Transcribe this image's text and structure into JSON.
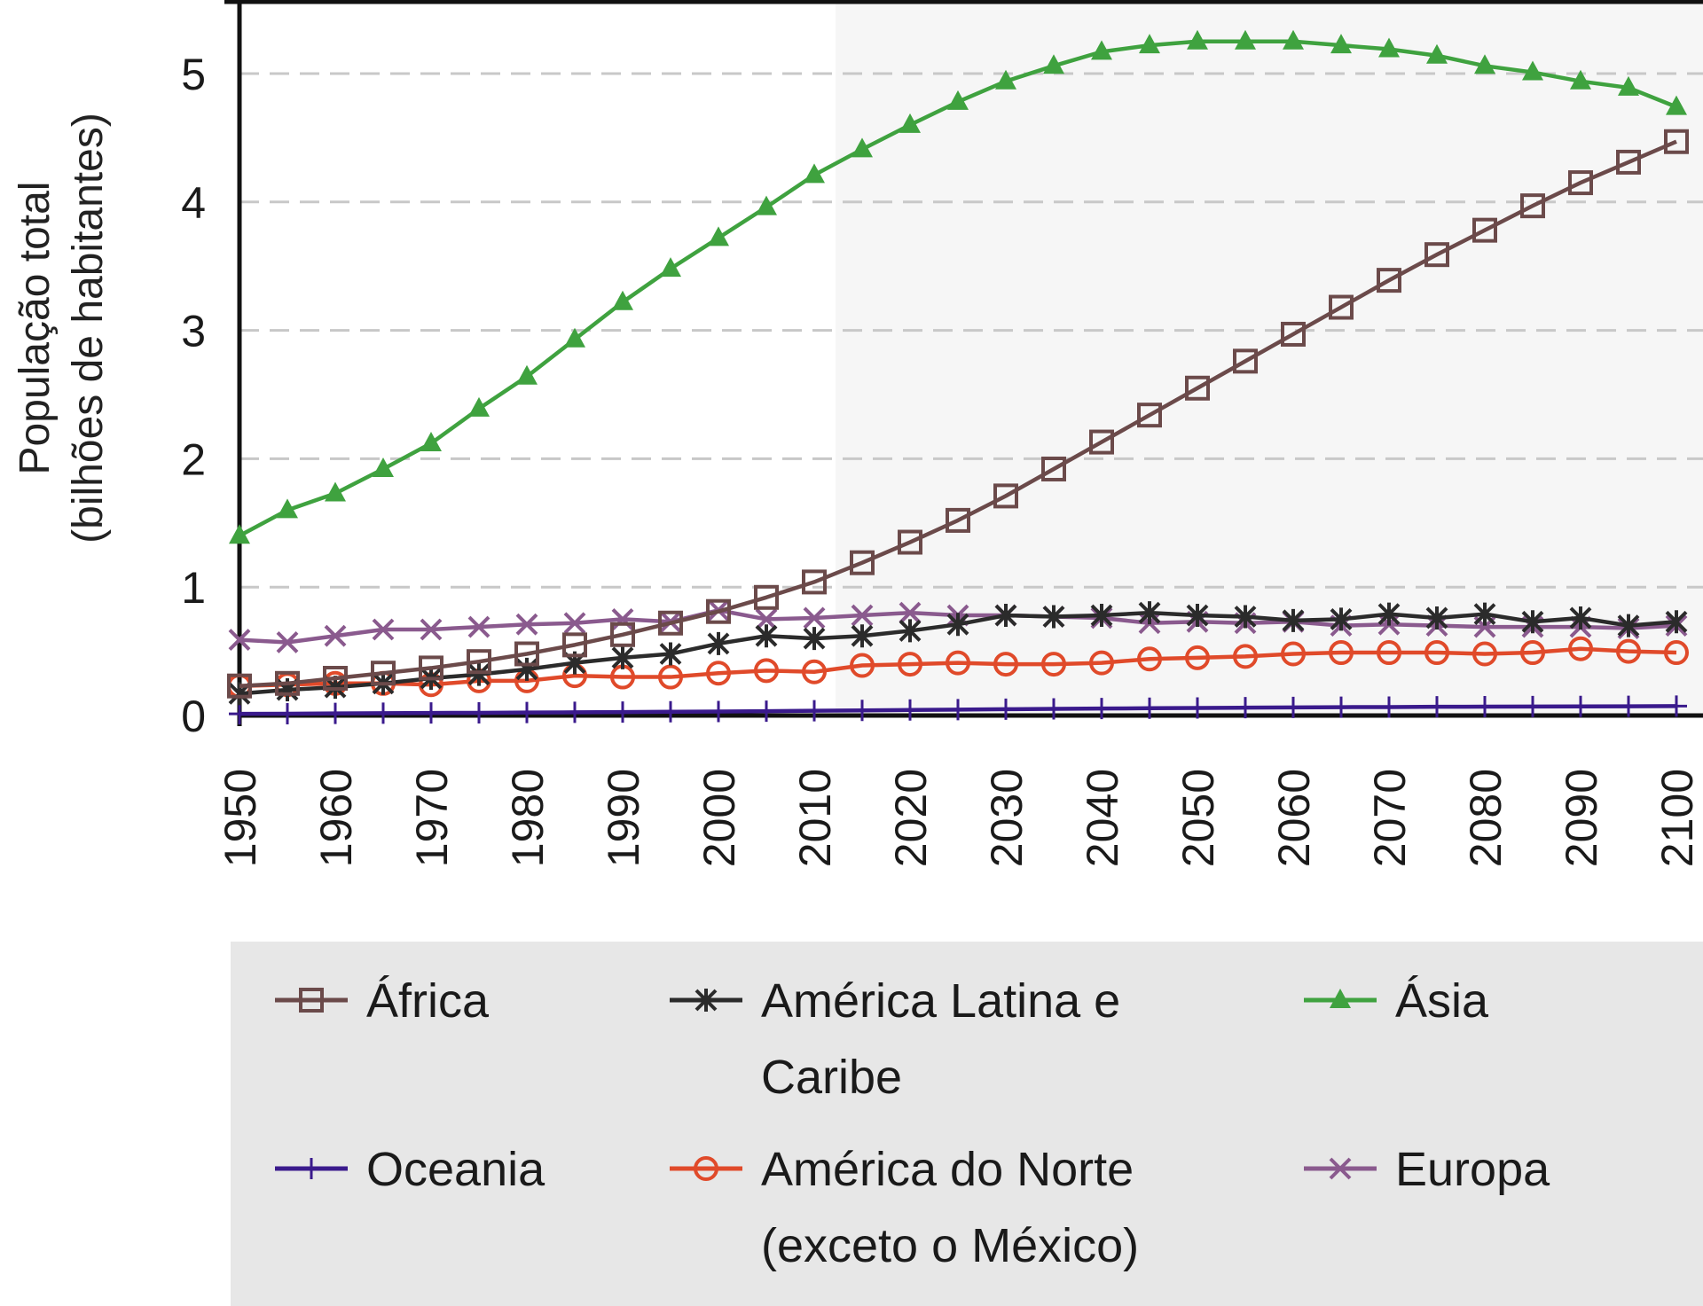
{
  "chart_data": {
    "type": "line",
    "ylabel_lines": [
      "População total",
      "(bilhões de habitantes)"
    ],
    "xlabel": "",
    "x": [
      1950,
      1955,
      1960,
      1965,
      1970,
      1975,
      1980,
      1985,
      1990,
      1995,
      2000,
      2005,
      2010,
      2015,
      2020,
      2025,
      2030,
      2035,
      2040,
      2045,
      2050,
      2055,
      2060,
      2065,
      2070,
      2075,
      2080,
      2085,
      2090,
      2095,
      2100
    ],
    "xticks": [
      1950,
      1960,
      1970,
      1980,
      1990,
      2000,
      2010,
      2020,
      2030,
      2040,
      2050,
      2060,
      2070,
      2080,
      2090,
      2100
    ],
    "xlim": [
      1950,
      2100
    ],
    "ylim": [
      0,
      5.5
    ],
    "yticks": [
      0,
      1,
      2,
      3,
      4,
      5
    ],
    "grid": "horizontal dashed",
    "projection_shading_from": 2015,
    "legend_position": "bottom",
    "series": [
      {
        "name": "África",
        "color": "#6b4a4a",
        "marker": "square",
        "values": [
          0.23,
          0.25,
          0.29,
          0.33,
          0.37,
          0.42,
          0.48,
          0.55,
          0.63,
          0.72,
          0.81,
          0.92,
          1.04,
          1.19,
          1.35,
          1.52,
          1.71,
          1.92,
          2.13,
          2.34,
          2.55,
          2.76,
          2.97,
          3.18,
          3.39,
          3.59,
          3.78,
          3.97,
          4.15,
          4.31,
          4.47
        ]
      },
      {
        "name": "América Latina e Caribe",
        "color": "#2b2b2b",
        "marker": "asterisk",
        "values": [
          0.17,
          0.2,
          0.22,
          0.25,
          0.29,
          0.32,
          0.36,
          0.41,
          0.45,
          0.48,
          0.56,
          0.62,
          0.6,
          0.62,
          0.66,
          0.71,
          0.78,
          0.77,
          0.78,
          0.8,
          0.78,
          0.77,
          0.74,
          0.75,
          0.79,
          0.76,
          0.79,
          0.73,
          0.76,
          0.7,
          0.73
        ]
      },
      {
        "name": "Ásia",
        "color": "#3fa23f",
        "marker": "triangle",
        "values": [
          1.4,
          1.6,
          1.73,
          1.92,
          2.12,
          2.39,
          2.64,
          2.93,
          3.22,
          3.48,
          3.72,
          3.96,
          4.21,
          4.41,
          4.6,
          4.78,
          4.94,
          5.06,
          5.17,
          5.22,
          5.25,
          5.25,
          5.25,
          5.22,
          5.19,
          5.14,
          5.06,
          5.01,
          4.94,
          4.89,
          4.74
        ]
      },
      {
        "name": "Oceania",
        "color": "#3a1a8c",
        "marker": "plus",
        "values": [
          0.013,
          0.014,
          0.016,
          0.018,
          0.02,
          0.021,
          0.023,
          0.025,
          0.027,
          0.029,
          0.031,
          0.034,
          0.037,
          0.04,
          0.043,
          0.046,
          0.049,
          0.052,
          0.054,
          0.057,
          0.059,
          0.061,
          0.063,
          0.065,
          0.066,
          0.068,
          0.069,
          0.07,
          0.071,
          0.072,
          0.073
        ]
      },
      {
        "name": "América do Norte (exceto o México)",
        "color": "#e04a2a",
        "marker": "circle",
        "values": [
          0.23,
          0.24,
          0.25,
          0.25,
          0.24,
          0.27,
          0.27,
          0.31,
          0.3,
          0.3,
          0.33,
          0.35,
          0.34,
          0.39,
          0.4,
          0.41,
          0.4,
          0.4,
          0.41,
          0.44,
          0.45,
          0.46,
          0.48,
          0.49,
          0.49,
          0.49,
          0.48,
          0.49,
          0.52,
          0.5,
          0.49
        ]
      },
      {
        "name": "Europa",
        "color": "#8a5a8e",
        "marker": "x",
        "values": [
          0.59,
          0.57,
          0.62,
          0.67,
          0.67,
          0.69,
          0.71,
          0.72,
          0.75,
          0.73,
          0.82,
          0.75,
          0.76,
          0.78,
          0.8,
          0.78,
          0.78,
          0.77,
          0.76,
          0.72,
          0.73,
          0.72,
          0.73,
          0.7,
          0.71,
          0.7,
          0.69,
          0.69,
          0.69,
          0.68,
          0.7
        ]
      }
    ],
    "legend": [
      {
        "series": 0,
        "lines": [
          "África"
        ]
      },
      {
        "series": 1,
        "lines": [
          "América Latina e",
          "Caribe"
        ]
      },
      {
        "series": 2,
        "lines": [
          "Ásia"
        ]
      },
      {
        "series": 3,
        "lines": [
          "Oceania"
        ]
      },
      {
        "series": 4,
        "lines": [
          "América do Norte",
          "(exceto o México)"
        ]
      },
      {
        "series": 5,
        "lines": [
          "Europa"
        ]
      }
    ]
  }
}
